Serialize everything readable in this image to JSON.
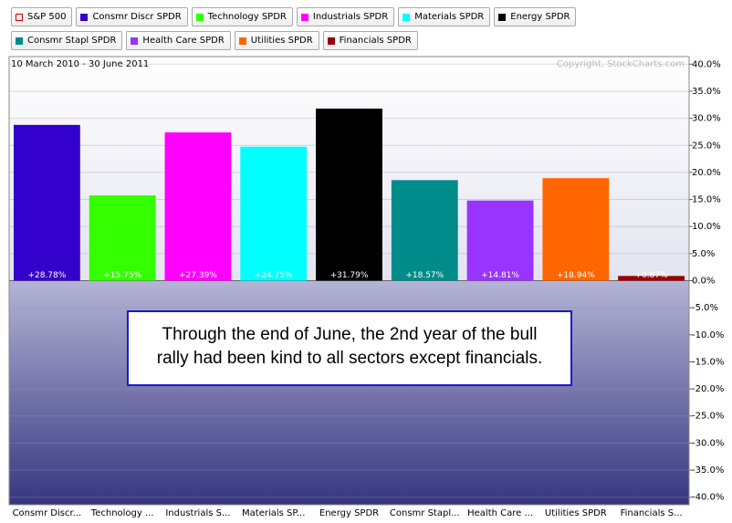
{
  "chart_data": {
    "type": "bar",
    "benchmark": {
      "name": "S&P 500",
      "color": "#cc0000"
    },
    "legend": [
      "Consmr Discr SPDR",
      "Technology SPDR",
      "Industrials SPDR",
      "Materials SPDR",
      "Energy SPDR",
      "Consmr Stapl SPDR",
      "Health Care SPDR",
      "Utilities SPDR",
      "Financials SPDR"
    ],
    "subtitle": "10 March 2010 - 30 June 2011",
    "credit": "Copyright, StockCharts.com",
    "categories": [
      "Consmr Discr...",
      "Technology ...",
      "Industrials S...",
      "Materials SP...",
      "Energy SPDR",
      "Consmr Stapl...",
      "Health Care ...",
      "Utilities SPDR",
      "Financials S..."
    ],
    "values": [
      28.78,
      15.75,
      27.39,
      24.75,
      31.79,
      18.57,
      14.81,
      18.94,
      0.87
    ],
    "value_labels": [
      "+28.78%",
      "+15.75%",
      "+27.39%",
      "+24.75%",
      "+31.79%",
      "+18.57%",
      "+14.81%",
      "+18.94%",
      "+0.87%"
    ],
    "colors": [
      "#3300cc",
      "#33ff00",
      "#ff00ff",
      "#00ffff",
      "#000000",
      "#008b8b",
      "#9933ff",
      "#ff6600",
      "#990000"
    ],
    "ylim": [
      -41.4,
      41.4
    ],
    "yticks": [
      {
        "value": 40,
        "label": "40.0%"
      },
      {
        "value": 35,
        "label": "35.0%"
      },
      {
        "value": 30,
        "label": "30.0%"
      },
      {
        "value": 25,
        "label": "25.0%"
      },
      {
        "value": 20,
        "label": "20.0%"
      },
      {
        "value": 15,
        "label": "15.0%"
      },
      {
        "value": 10,
        "label": "10.0%"
      },
      {
        "value": 5,
        "label": "5.0%"
      },
      {
        "value": 0,
        "label": "0.0%"
      },
      {
        "value": -5,
        "label": "-5.0%"
      },
      {
        "value": -10,
        "label": "-10.0%"
      },
      {
        "value": -15,
        "label": "-15.0%"
      },
      {
        "value": -20,
        "label": "-20.0%"
      },
      {
        "value": -25,
        "label": "-25.0%"
      },
      {
        "value": -30,
        "label": "-30.0%"
      },
      {
        "value": -35,
        "label": "-35.0%"
      },
      {
        "value": -40,
        "label": "-40.0%"
      }
    ],
    "grid": true,
    "annotation": [
      "Through the end of June, the 2nd year of the bull",
      "rally had been kind to all sectors except financials."
    ]
  }
}
